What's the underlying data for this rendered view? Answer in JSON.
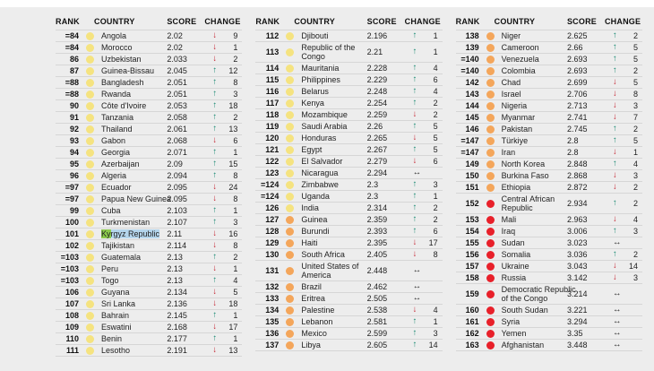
{
  "header": {
    "rank": "RANK",
    "country": "COUNTRY",
    "score": "SCORE",
    "change": "CHANGE"
  },
  "dot_colors": {
    "yellow": "#F5E380",
    "orange": "#F4A65B",
    "red": "#E8202A"
  },
  "change_colors": {
    "up": "#1A8A72",
    "down": "#C41E2C",
    "same": "#1A1A1A"
  },
  "change_glyphs": {
    "up": "↑",
    "down": "↓",
    "same": "↔"
  },
  "selection": {
    "green": "#8BC94C",
    "blue": "#B4D5EC"
  },
  "tables": [
    {
      "rows": [
        {
          "rank": "=84",
          "country": "Angola",
          "score": "2.02",
          "dir": "down",
          "chg": "9",
          "dot": "yellow"
        },
        {
          "rank": "=84",
          "country": "Morocco",
          "score": "2.02",
          "dir": "down",
          "chg": "1",
          "dot": "yellow"
        },
        {
          "rank": "86",
          "country": "Uzbekistan",
          "score": "2.033",
          "dir": "down",
          "chg": "2",
          "dot": "yellow"
        },
        {
          "rank": "87",
          "country": "Guinea-Bissau",
          "score": "2.045",
          "dir": "up",
          "chg": "12",
          "dot": "yellow"
        },
        {
          "rank": "=88",
          "country": "Bangladesh",
          "score": "2.051",
          "dir": "up",
          "chg": "8",
          "dot": "yellow"
        },
        {
          "rank": "=88",
          "country": "Rwanda",
          "score": "2.051",
          "dir": "up",
          "chg": "3",
          "dot": "yellow"
        },
        {
          "rank": "90",
          "country": "Côte d'Ivoire",
          "score": "2.053",
          "dir": "up",
          "chg": "18",
          "dot": "yellow"
        },
        {
          "rank": "91",
          "country": "Tanzania",
          "score": "2.058",
          "dir": "up",
          "chg": "2",
          "dot": "yellow"
        },
        {
          "rank": "92",
          "country": "Thailand",
          "score": "2.061",
          "dir": "up",
          "chg": "13",
          "dot": "yellow"
        },
        {
          "rank": "93",
          "country": "Gabon",
          "score": "2.068",
          "dir": "down",
          "chg": "6",
          "dot": "yellow"
        },
        {
          "rank": "94",
          "country": "Georgia",
          "score": "2.071",
          "dir": "up",
          "chg": "1",
          "dot": "yellow"
        },
        {
          "rank": "95",
          "country": "Azerbaijan",
          "score": "2.09",
          "dir": "up",
          "chg": "15",
          "dot": "yellow"
        },
        {
          "rank": "96",
          "country": "Algeria",
          "score": "2.094",
          "dir": "up",
          "chg": "8",
          "dot": "yellow"
        },
        {
          "rank": "=97",
          "country": "Ecuador",
          "score": "2.095",
          "dir": "down",
          "chg": "24",
          "dot": "yellow"
        },
        {
          "rank": "=97",
          "country": "Papua New Guinea",
          "score": "2.095",
          "dir": "down",
          "chg": "8",
          "dot": "yellow"
        },
        {
          "rank": "99",
          "country": "Cuba",
          "score": "2.103",
          "dir": "up",
          "chg": "1",
          "dot": "yellow"
        },
        {
          "rank": "100",
          "country": "Turkmenistan",
          "score": "2.107",
          "dir": "up",
          "chg": "3",
          "dot": "yellow"
        },
        {
          "rank": "101",
          "country": "Kyrgyz Republic",
          "sel": [
            "Ky",
            "rgyz Republic"
          ],
          "score": "2.11",
          "dir": "down",
          "chg": "16",
          "dot": "yellow"
        },
        {
          "rank": "102",
          "country": "Tajikistan",
          "score": "2.114",
          "dir": "down",
          "chg": "8",
          "dot": "yellow"
        },
        {
          "rank": "=103",
          "country": "Guatemala",
          "score": "2.13",
          "dir": "up",
          "chg": "2",
          "dot": "yellow"
        },
        {
          "rank": "=103",
          "country": "Peru",
          "score": "2.13",
          "dir": "down",
          "chg": "1",
          "dot": "yellow"
        },
        {
          "rank": "=103",
          "country": "Togo",
          "score": "2.13",
          "dir": "up",
          "chg": "4",
          "dot": "yellow"
        },
        {
          "rank": "106",
          "country": "Guyana",
          "score": "2.134",
          "dir": "down",
          "chg": "5",
          "dot": "yellow"
        },
        {
          "rank": "107",
          "country": "Sri Lanka",
          "score": "2.136",
          "dir": "down",
          "chg": "18",
          "dot": "yellow"
        },
        {
          "rank": "108",
          "country": "Bahrain",
          "score": "2.145",
          "dir": "up",
          "chg": "1",
          "dot": "yellow"
        },
        {
          "rank": "109",
          "country": "Eswatini",
          "score": "2.168",
          "dir": "down",
          "chg": "17",
          "dot": "yellow"
        },
        {
          "rank": "110",
          "country": "Benin",
          "score": "2.177",
          "dir": "up",
          "chg": "1",
          "dot": "yellow"
        },
        {
          "rank": "111",
          "country": "Lesotho",
          "score": "2.191",
          "dir": "down",
          "chg": "13",
          "dot": "yellow"
        }
      ]
    },
    {
      "rows": [
        {
          "rank": "112",
          "country": "Djibouti",
          "score": "2.196",
          "dir": "up",
          "chg": "1",
          "dot": "yellow"
        },
        {
          "rank": "113",
          "country": "Republic of the Congo",
          "wrap": true,
          "score": "2.21",
          "dir": "up",
          "chg": "1",
          "dot": "yellow"
        },
        {
          "rank": "114",
          "country": "Mauritania",
          "score": "2.228",
          "dir": "up",
          "chg": "4",
          "dot": "yellow"
        },
        {
          "rank": "115",
          "country": "Philippines",
          "score": "2.229",
          "dir": "up",
          "chg": "6",
          "dot": "yellow"
        },
        {
          "rank": "116",
          "country": "Belarus",
          "score": "2.248",
          "dir": "up",
          "chg": "4",
          "dot": "yellow"
        },
        {
          "rank": "117",
          "country": "Kenya",
          "score": "2.254",
          "dir": "up",
          "chg": "2",
          "dot": "yellow"
        },
        {
          "rank": "118",
          "country": "Mozambique",
          "score": "2.259",
          "dir": "down",
          "chg": "2",
          "dot": "yellow"
        },
        {
          "rank": "119",
          "country": "Saudi Arabia",
          "score": "2.26",
          "dir": "up",
          "chg": "5",
          "dot": "yellow"
        },
        {
          "rank": "120",
          "country": "Honduras",
          "score": "2.265",
          "dir": "down",
          "chg": "5",
          "dot": "yellow"
        },
        {
          "rank": "121",
          "country": "Egypt",
          "score": "2.267",
          "dir": "up",
          "chg": "5",
          "dot": "yellow"
        },
        {
          "rank": "122",
          "country": "El Salvador",
          "score": "2.279",
          "dir": "down",
          "chg": "6",
          "dot": "yellow"
        },
        {
          "rank": "123",
          "country": "Nicaragua",
          "score": "2.294",
          "dir": "same",
          "chg": "",
          "dot": "yellow"
        },
        {
          "rank": "=124",
          "country": "Zimbabwe",
          "score": "2.3",
          "dir": "up",
          "chg": "3",
          "dot": "yellow"
        },
        {
          "rank": "=124",
          "country": "Uganda",
          "score": "2.3",
          "dir": "up",
          "chg": "1",
          "dot": "yellow"
        },
        {
          "rank": "126",
          "country": "India",
          "score": "2.314",
          "dir": "up",
          "chg": "2",
          "dot": "yellow"
        },
        {
          "rank": "127",
          "country": "Guinea",
          "score": "2.359",
          "dir": "up",
          "chg": "2",
          "dot": "orange"
        },
        {
          "rank": "128",
          "country": "Burundi",
          "score": "2.393",
          "dir": "up",
          "chg": "6",
          "dot": "orange"
        },
        {
          "rank": "129",
          "country": "Haiti",
          "score": "2.395",
          "dir": "down",
          "chg": "17",
          "dot": "orange"
        },
        {
          "rank": "130",
          "country": "South Africa",
          "score": "2.405",
          "dir": "down",
          "chg": "8",
          "dot": "orange"
        },
        {
          "rank": "131",
          "country": "United States of America",
          "wrap": true,
          "score": "2.448",
          "dir": "same",
          "chg": "",
          "dot": "orange"
        },
        {
          "rank": "132",
          "country": "Brazil",
          "score": "2.462",
          "dir": "same",
          "chg": "",
          "dot": "orange"
        },
        {
          "rank": "133",
          "country": "Eritrea",
          "score": "2.505",
          "dir": "same",
          "chg": "",
          "dot": "orange"
        },
        {
          "rank": "134",
          "country": "Palestine",
          "score": "2.538",
          "dir": "down",
          "chg": "4",
          "dot": "orange"
        },
        {
          "rank": "135",
          "country": "Lebanon",
          "score": "2.581",
          "dir": "up",
          "chg": "1",
          "dot": "orange"
        },
        {
          "rank": "136",
          "country": "Mexico",
          "score": "2.599",
          "dir": "up",
          "chg": "3",
          "dot": "orange"
        },
        {
          "rank": "137",
          "country": "Libya",
          "score": "2.605",
          "dir": "up",
          "chg": "14",
          "dot": "orange"
        }
      ]
    },
    {
      "rows": [
        {
          "rank": "138",
          "country": "Niger",
          "score": "2.625",
          "dir": "up",
          "chg": "2",
          "dot": "orange"
        },
        {
          "rank": "139",
          "country": "Cameroon",
          "score": "2.66",
          "dir": "up",
          "chg": "5",
          "dot": "orange"
        },
        {
          "rank": "=140",
          "country": "Venezuela",
          "score": "2.693",
          "dir": "up",
          "chg": "5",
          "dot": "orange"
        },
        {
          "rank": "=140",
          "country": "Colombia",
          "score": "2.693",
          "dir": "up",
          "chg": "2",
          "dot": "orange"
        },
        {
          "rank": "142",
          "country": "Chad",
          "score": "2.699",
          "dir": "down",
          "chg": "5",
          "dot": "orange"
        },
        {
          "rank": "143",
          "country": "Israel",
          "score": "2.706",
          "dir": "down",
          "chg": "8",
          "dot": "orange"
        },
        {
          "rank": "144",
          "country": "Nigeria",
          "score": "2.713",
          "dir": "down",
          "chg": "3",
          "dot": "orange"
        },
        {
          "rank": "145",
          "country": "Myanmar",
          "score": "2.741",
          "dir": "down",
          "chg": "7",
          "dot": "orange"
        },
        {
          "rank": "146",
          "country": "Pakistan",
          "score": "2.745",
          "dir": "up",
          "chg": "2",
          "dot": "orange"
        },
        {
          "rank": "=147",
          "country": "Türkiye",
          "score": "2.8",
          "dir": "up",
          "chg": "5",
          "dot": "orange"
        },
        {
          "rank": "=147",
          "country": "Iran",
          "score": "2.8",
          "dir": "down",
          "chg": "1",
          "dot": "orange"
        },
        {
          "rank": "149",
          "country": "North Korea",
          "score": "2.848",
          "dir": "up",
          "chg": "4",
          "dot": "orange"
        },
        {
          "rank": "150",
          "country": "Burkina Faso",
          "score": "2.868",
          "dir": "down",
          "chg": "3",
          "dot": "orange"
        },
        {
          "rank": "151",
          "country": "Ethiopia",
          "score": "2.872",
          "dir": "down",
          "chg": "2",
          "dot": "orange"
        },
        {
          "rank": "152",
          "country": "Central African Republic",
          "wrap": true,
          "score": "2.934",
          "dir": "up",
          "chg": "2",
          "dot": "red"
        },
        {
          "rank": "153",
          "country": "Mali",
          "score": "2.963",
          "dir": "down",
          "chg": "4",
          "dot": "red"
        },
        {
          "rank": "154",
          "country": "Iraq",
          "score": "3.006",
          "dir": "up",
          "chg": "3",
          "dot": "red"
        },
        {
          "rank": "155",
          "country": "Sudan",
          "score": "3.023",
          "dir": "same",
          "chg": "",
          "dot": "red"
        },
        {
          "rank": "156",
          "country": "Somalia",
          "score": "3.036",
          "dir": "up",
          "chg": "2",
          "dot": "red"
        },
        {
          "rank": "157",
          "country": "Ukraine",
          "score": "3.043",
          "dir": "down",
          "chg": "14",
          "dot": "red"
        },
        {
          "rank": "158",
          "country": "Russia",
          "score": "3.142",
          "dir": "down",
          "chg": "3",
          "dot": "red"
        },
        {
          "rank": "159",
          "country": "Democratic Republic of the Congo",
          "wrap": true,
          "score": "3.214",
          "dir": "same",
          "chg": "",
          "dot": "red"
        },
        {
          "rank": "160",
          "country": "South Sudan",
          "score": "3.221",
          "dir": "same",
          "chg": "",
          "dot": "red"
        },
        {
          "rank": "161",
          "country": "Syria",
          "score": "3.294",
          "dir": "same",
          "chg": "",
          "dot": "red"
        },
        {
          "rank": "162",
          "country": "Yemen",
          "score": "3.35",
          "dir": "same",
          "chg": "",
          "dot": "red"
        },
        {
          "rank": "163",
          "country": "Afghanistan",
          "score": "3.448",
          "dir": "same",
          "chg": "",
          "dot": "red"
        }
      ]
    }
  ]
}
